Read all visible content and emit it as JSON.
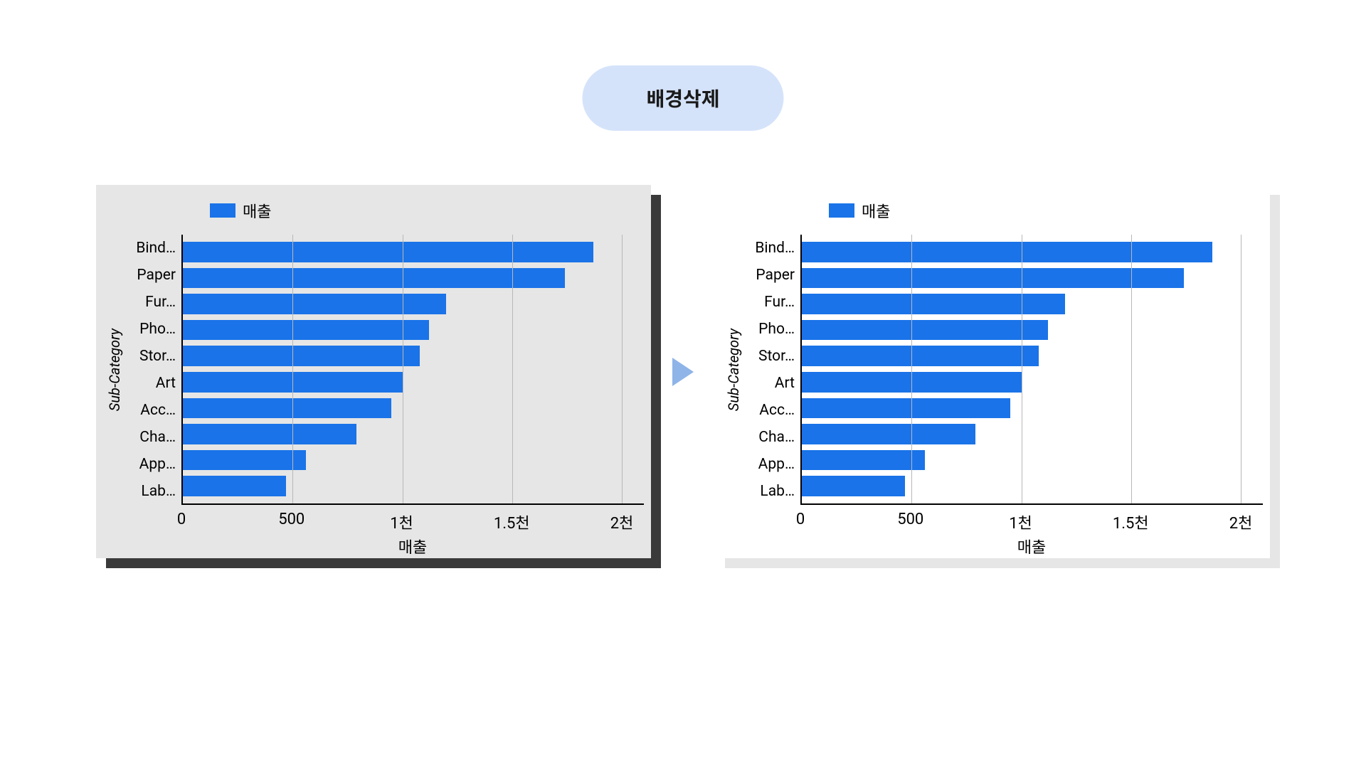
{
  "title": "배경삭제",
  "title_bg": "#d5e3fa",
  "title_color": "#1a1a1a",
  "arrow_color": "#8fb4e8",
  "chart": {
    "type": "bar-horizontal",
    "legend_label": "매출",
    "y_axis_title": "Sub-Category",
    "x_axis_title": "매출",
    "bar_color": "#1a73e8",
    "gridline_color": "#b8b8b8",
    "axis_color": "#000000",
    "x_min": 0,
    "x_max": 2100,
    "x_ticks": [
      {
        "value": 0,
        "label": "0"
      },
      {
        "value": 500,
        "label": "500"
      },
      {
        "value": 1000,
        "label": "1천"
      },
      {
        "value": 1500,
        "label": "1.5천"
      },
      {
        "value": 2000,
        "label": "2천"
      }
    ],
    "categories": [
      {
        "label": "Bind…",
        "value": 1870
      },
      {
        "label": "Paper",
        "value": 1740
      },
      {
        "label": "Fur…",
        "value": 1200
      },
      {
        "label": "Pho…",
        "value": 1120
      },
      {
        "label": "Stor…",
        "value": 1080
      },
      {
        "label": "Art",
        "value": 1000
      },
      {
        "label": "Acc…",
        "value": 950
      },
      {
        "label": "Cha…",
        "value": 790
      },
      {
        "label": "App…",
        "value": 560
      },
      {
        "label": "Lab…",
        "value": 470
      }
    ]
  },
  "panel_left": {
    "surface_bg": "#e6e6e6",
    "shadow_bg": "#3a3a3a"
  },
  "panel_right": {
    "surface_bg": "#ffffff",
    "shadow_bg": "#e6e6e6"
  }
}
